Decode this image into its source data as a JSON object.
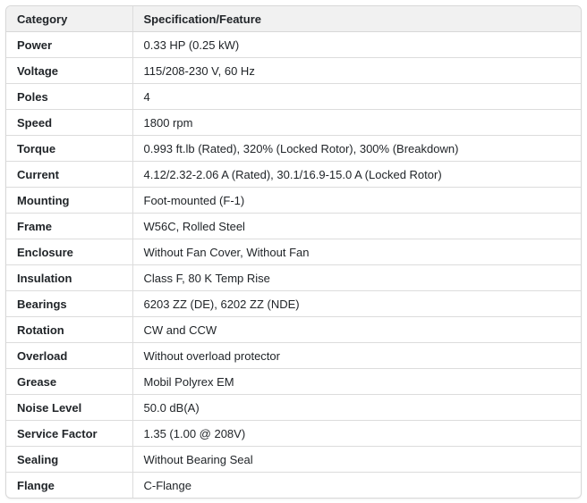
{
  "colors": {
    "header_background": "#f1f1f1",
    "border": "#d8d8d8",
    "inner_border": "#dcdcdc",
    "text": "#212529",
    "page_background": "#ffffff"
  },
  "table": {
    "columns": [
      {
        "label": "Category"
      },
      {
        "label": "Specification/Feature"
      }
    ],
    "rows": [
      {
        "category": "Power",
        "value": "0.33 HP (0.25 kW)"
      },
      {
        "category": "Voltage",
        "value": "115/208-230 V, 60 Hz"
      },
      {
        "category": "Poles",
        "value": "4"
      },
      {
        "category": "Speed",
        "value": "1800 rpm"
      },
      {
        "category": "Torque",
        "value": "0.993 ft.lb (Rated), 320% (Locked Rotor), 300% (Breakdown)"
      },
      {
        "category": "Current",
        "value": "4.12/2.32-2.06 A (Rated), 30.1/16.9-15.0 A (Locked Rotor)"
      },
      {
        "category": "Mounting",
        "value": "Foot-mounted (F-1)"
      },
      {
        "category": "Frame",
        "value": "W56C, Rolled Steel"
      },
      {
        "category": "Enclosure",
        "value": "Without Fan Cover, Without Fan"
      },
      {
        "category": "Insulation",
        "value": "Class F, 80 K Temp Rise"
      },
      {
        "category": "Bearings",
        "value": "6203 ZZ (DE), 6202 ZZ (NDE)"
      },
      {
        "category": "Rotation",
        "value": "CW and CCW"
      },
      {
        "category": "Overload",
        "value": "Without overload protector"
      },
      {
        "category": "Grease",
        "value": "Mobil Polyrex EM"
      },
      {
        "category": "Noise Level",
        "value": "50.0 dB(A)"
      },
      {
        "category": "Service Factor",
        "value": "1.35 (1.00 @ 208V)"
      },
      {
        "category": "Sealing",
        "value": "Without Bearing Seal"
      },
      {
        "category": "Flange",
        "value": "C-Flange"
      }
    ]
  }
}
